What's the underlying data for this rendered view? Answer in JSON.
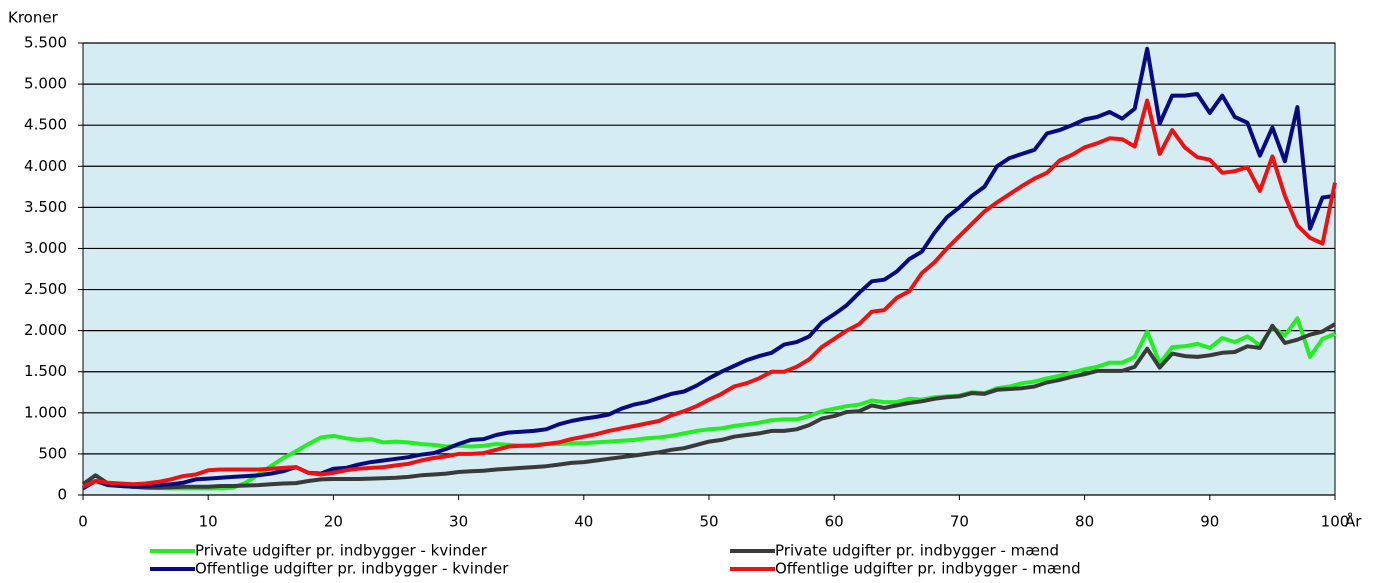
{
  "chart_data": {
    "type": "line",
    "y_label": "Kroner",
    "x_label": "År",
    "x": [
      0,
      1,
      2,
      3,
      4,
      5,
      6,
      7,
      8,
      9,
      10,
      11,
      12,
      13,
      14,
      15,
      16,
      17,
      18,
      19,
      20,
      21,
      22,
      23,
      24,
      25,
      26,
      27,
      28,
      29,
      30,
      31,
      32,
      33,
      34,
      35,
      36,
      37,
      38,
      39,
      40,
      41,
      42,
      43,
      44,
      45,
      46,
      47,
      48,
      49,
      50,
      51,
      52,
      53,
      54,
      55,
      56,
      57,
      58,
      59,
      60,
      61,
      62,
      63,
      64,
      65,
      66,
      67,
      68,
      69,
      70,
      71,
      72,
      73,
      74,
      75,
      76,
      77,
      78,
      79,
      80,
      81,
      82,
      83,
      84,
      85,
      86,
      87,
      88,
      89,
      90,
      91,
      92,
      93,
      94,
      95,
      96,
      97,
      98,
      99,
      100
    ],
    "xlim": [
      0,
      100
    ],
    "xticks": [
      0,
      10,
      20,
      30,
      40,
      50,
      60,
      70,
      80,
      90,
      100
    ],
    "ylim": [
      0,
      5500
    ],
    "yticks": [
      0,
      500,
      {
        "value": 1000,
        "label": "1.000"
      },
      {
        "value": 1500,
        "label": "1.500"
      },
      {
        "value": 2000,
        "label": "2.000"
      },
      {
        "value": 2500,
        "label": "2.500"
      },
      {
        "value": 3000,
        "label": "3.000"
      },
      {
        "value": 3500,
        "label": "3.500"
      },
      {
        "value": 4000,
        "label": "4.000"
      },
      {
        "value": 4500,
        "label": "4.500"
      },
      {
        "value": 5000,
        "label": "5.000"
      },
      {
        "value": 5500,
        "label": "5.500"
      }
    ],
    "grid": true,
    "plot_background": "#d5ecf3",
    "series": [
      {
        "name": "Private udgifter pr. indbygger - kvinder",
        "color": "#22ee22",
        "values": [
          100,
          170,
          130,
          110,
          100,
          90,
          85,
          80,
          80,
          80,
          80,
          80,
          90,
          150,
          250,
          350,
          450,
          530,
          620,
          700,
          720,
          690,
          670,
          680,
          640,
          650,
          640,
          620,
          610,
          590,
          600,
          590,
          600,
          620,
          610,
          600,
          610,
          620,
          620,
          630,
          630,
          640,
          650,
          660,
          670,
          690,
          700,
          720,
          750,
          780,
          800,
          810,
          840,
          860,
          880,
          910,
          920,
          920,
          960,
          1020,
          1050,
          1080,
          1100,
          1150,
          1130,
          1130,
          1170,
          1160,
          1190,
          1200,
          1210,
          1250,
          1240,
          1300,
          1320,
          1360,
          1380,
          1420,
          1450,
          1490,
          1530,
          1560,
          1610,
          1610,
          1680,
          1990,
          1600,
          1800,
          1810,
          1840,
          1790,
          1910,
          1860,
          1930,
          1820,
          2040,
          1940,
          2150,
          1680,
          1900,
          1960
        ]
      },
      {
        "name": "Private udgifter pr. indbygger - mænd",
        "color": "#3a3a3a",
        "values": [
          130,
          240,
          140,
          120,
          100,
          90,
          90,
          95,
          100,
          100,
          100,
          110,
          110,
          115,
          120,
          130,
          140,
          145,
          170,
          190,
          195,
          195,
          195,
          200,
          205,
          210,
          220,
          240,
          250,
          260,
          280,
          290,
          295,
          310,
          320,
          330,
          340,
          350,
          370,
          390,
          400,
          420,
          440,
          460,
          480,
          500,
          520,
          550,
          570,
          610,
          650,
          670,
          710,
          730,
          750,
          780,
          780,
          800,
          850,
          930,
          960,
          1010,
          1020,
          1090,
          1060,
          1090,
          1120,
          1140,
          1170,
          1190,
          1200,
          1240,
          1230,
          1280,
          1290,
          1300,
          1320,
          1370,
          1400,
          1440,
          1470,
          1510,
          1510,
          1510,
          1560,
          1780,
          1550,
          1720,
          1690,
          1680,
          1700,
          1730,
          1740,
          1810,
          1790,
          2060,
          1850,
          1890,
          1950,
          1990,
          2080
        ]
      },
      {
        "name": "Offentlige udgifter pr. indbygger - kvinder",
        "color": "#0a0a80",
        "values": [
          80,
          170,
          120,
          110,
          100,
          110,
          120,
          130,
          150,
          190,
          200,
          210,
          220,
          230,
          240,
          260,
          290,
          340,
          270,
          260,
          320,
          330,
          370,
          400,
          420,
          440,
          460,
          490,
          510,
          560,
          620,
          670,
          680,
          730,
          760,
          770,
          780,
          800,
          860,
          900,
          930,
          950,
          980,
          1050,
          1100,
          1130,
          1180,
          1230,
          1260,
          1330,
          1420,
          1500,
          1570,
          1640,
          1690,
          1730,
          1830,
          1860,
          1930,
          2100,
          2200,
          2310,
          2460,
          2600,
          2620,
          2720,
          2870,
          2960,
          3190,
          3380,
          3500,
          3640,
          3750,
          4000,
          4100,
          4150,
          4200,
          4400,
          4440,
          4500,
          4570,
          4600,
          4660,
          4580,
          4700,
          5430,
          4520,
          4860,
          4860,
          4880,
          4650,
          4860,
          4600,
          4530,
          4130,
          4470,
          4060,
          4720,
          3240,
          3620,
          3640
        ]
      },
      {
        "name": "Offentlige udgifter pr. indbygger - mænd",
        "color": "#ee1111",
        "values": [
          100,
          170,
          150,
          140,
          130,
          140,
          160,
          190,
          230,
          250,
          300,
          310,
          310,
          310,
          310,
          320,
          330,
          340,
          270,
          250,
          270,
          300,
          320,
          330,
          340,
          360,
          380,
          420,
          450,
          470,
          500,
          500,
          510,
          550,
          590,
          600,
          600,
          620,
          640,
          680,
          710,
          740,
          780,
          810,
          840,
          870,
          900,
          970,
          1020,
          1080,
          1160,
          1230,
          1320,
          1360,
          1420,
          1500,
          1500,
          1560,
          1650,
          1800,
          1900,
          2000,
          2080,
          2230,
          2250,
          2400,
          2480,
          2700,
          2830,
          3000,
          3150,
          3300,
          3450,
          3560,
          3660,
          3760,
          3850,
          3920,
          4070,
          4140,
          4230,
          4280,
          4340,
          4330,
          4240,
          4800,
          4150,
          4440,
          4230,
          4110,
          4080,
          3920,
          3940,
          3990,
          3700,
          4120,
          3640,
          3280,
          3130,
          3060,
          3800
        ]
      }
    ]
  }
}
